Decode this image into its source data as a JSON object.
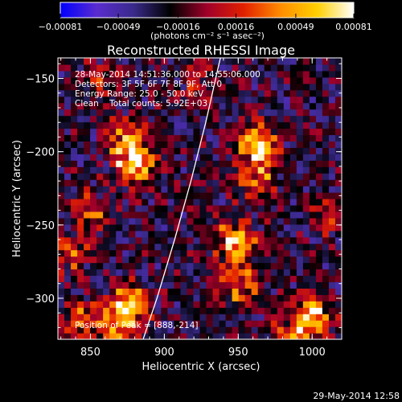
{
  "chart_data": {
    "type": "heatmap",
    "title": "Reconstructed RHESSI Image",
    "xlabel": "Heliocentric X (arcsec)",
    "ylabel": "Heliocentric Y (arcsec)",
    "xlim": [
      828,
      1020
    ],
    "ylim": [
      -328,
      -136
    ],
    "x_ticks": [
      850,
      900,
      950,
      1000
    ],
    "y_ticks": [
      -300,
      -250,
      -200,
      -150
    ],
    "x_tick_labels": [
      "850",
      "900",
      "950",
      "1000"
    ],
    "y_tick_labels": [
      "−300",
      "−250",
      "−200",
      "−150"
    ],
    "colorbar": {
      "min": -0.00081,
      "max": 0.00081,
      "ticks": [
        -0.00081,
        -0.00049,
        -0.00016,
        0.00016,
        0.00049,
        0.00081
      ],
      "tick_labels": [
        "−0.00081",
        "−0.00049",
        "−0.00016",
        "0.00016",
        "0.00049",
        "0.00081"
      ],
      "units_label": "(photons cm⁻² s⁻¹ asec⁻²)",
      "colormap": [
        "#0000ff",
        "#5a2ccf",
        "#3a2a8a",
        "#000000",
        "#a0002a",
        "#e22000",
        "#ff8c00",
        "#ffd000",
        "#ffffff"
      ]
    },
    "annotations": [
      "28-May-2014 14:51:36.000 to 14:55:06.000",
      "Detectors: 3F 5F 6F 7F 8F 9F, Att 0",
      "Energy Range: 25.0 - 50.0 keV",
      "Clean    Total counts: 5.92E+03"
    ],
    "peak_label": "Position of Peak = [888,-214]",
    "peak_position": [
      888,
      -214
    ],
    "limb_curve": [
      [
        885,
        -330
      ],
      [
        895,
        -300
      ],
      [
        907,
        -260
      ],
      [
        918,
        -220
      ],
      [
        928,
        -180
      ],
      [
        937,
        -140
      ],
      [
        942,
        -120
      ]
    ],
    "sources": [
      {
        "x": 880,
        "y": -207,
        "strength": 1.0
      },
      {
        "x": 873,
        "y": -190,
        "strength": 0.55
      },
      {
        "x": 875,
        "y": -305,
        "strength": 0.85
      },
      {
        "x": 868,
        "y": -320,
        "strength": 0.5
      },
      {
        "x": 850,
        "y": -240,
        "strength": 0.45
      },
      {
        "x": 837,
        "y": -270,
        "strength": 0.4
      },
      {
        "x": 843,
        "y": -315,
        "strength": 0.45
      },
      {
        "x": 962,
        "y": -195,
        "strength": 0.85
      },
      {
        "x": 962,
        "y": -218,
        "strength": 0.55
      },
      {
        "x": 948,
        "y": -260,
        "strength": 0.8
      },
      {
        "x": 950,
        "y": -290,
        "strength": 0.6
      },
      {
        "x": 1000,
        "y": -312,
        "strength": 0.75
      },
      {
        "x": 985,
        "y": -325,
        "strength": 0.5
      },
      {
        "x": 1012,
        "y": -245,
        "strength": 0.35
      },
      {
        "x": 925,
        "y": -155,
        "strength": 0.35
      },
      {
        "x": 855,
        "y": -150,
        "strength": 0.3
      }
    ],
    "grid": false
  },
  "timestamp": "29-May-2014 12:58"
}
